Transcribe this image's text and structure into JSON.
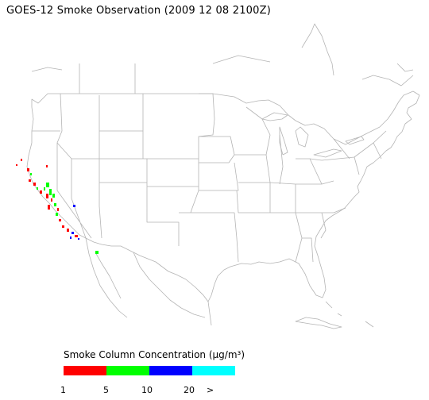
{
  "title": "GOES-12 Smoke Observation (2009 12 08  2100Z)",
  "legend": {
    "title": "Smoke Column Concentration (μg/m³)",
    "swatches": [
      {
        "name": "1-5",
        "color": "#ff0000"
      },
      {
        "name": "5-10",
        "color": "#00ff00"
      },
      {
        "name": "10-20",
        "color": "#0000ff"
      },
      {
        "name": ">20",
        "color": "#00ffff"
      }
    ],
    "ticks": [
      "1",
      "5",
      "10",
      "20",
      ">"
    ]
  },
  "colors": {
    "land_outline": "#b4b4b4",
    "background": "#ffffff"
  }
}
